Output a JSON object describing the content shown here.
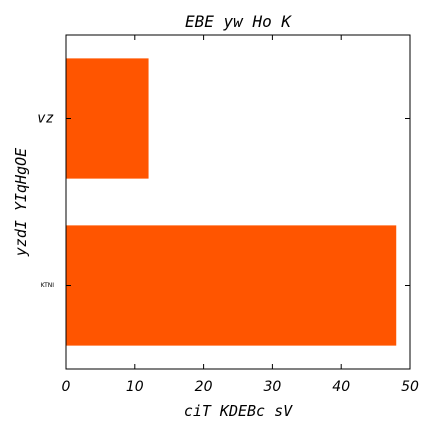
{
  "chart_data": {
    "type": "bar",
    "orientation": "horizontal",
    "title": "EBE yw Ho K",
    "xlabel": "ciT KDEBc sV",
    "ylabel": "yzdI YIqHgOE",
    "categories": [
      "KTNI",
      "vz"
    ],
    "values": [
      48,
      12
    ],
    "xlim": [
      0,
      50
    ],
    "xticks": [
      0,
      10,
      20,
      30,
      40,
      50
    ],
    "bar_color": "#ff5500",
    "grid": false,
    "legend": "none"
  }
}
